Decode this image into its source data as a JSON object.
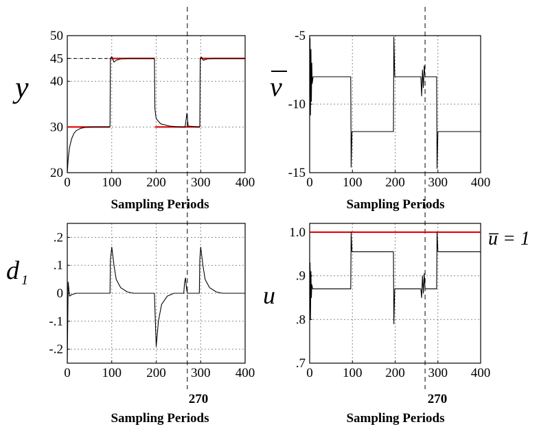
{
  "colors": {
    "signal": "#000000",
    "reference": "#dd0000",
    "grid": "#888888"
  },
  "chart_data": [
    {
      "id": "y",
      "type": "line",
      "ylabel": "y",
      "xlabel": "Sampling Periods",
      "xlim": [
        0,
        400
      ],
      "ylim": [
        20,
        50
      ],
      "xticks": [
        0,
        100,
        200,
        300,
        400
      ],
      "yticks": [
        20,
        30,
        40,
        45,
        50
      ],
      "grid": true,
      "vline_x": 270,
      "hline_dashed": 45,
      "series": [
        {
          "role": "reference",
          "color": "#dd0000",
          "segments": [
            [
              [
                0,
                30
              ],
              [
                96,
                30
              ]
            ],
            [
              [
                96,
                45
              ],
              [
                197,
                45
              ]
            ],
            [
              [
                197,
                30
              ],
              [
                298,
                30
              ]
            ],
            [
              [
                298,
                45
              ],
              [
                400,
                45
              ]
            ]
          ]
        },
        {
          "role": "signal",
          "color": "#000000",
          "points": [
            [
              0,
              20
            ],
            [
              2,
              23
            ],
            [
              5,
              25.5
            ],
            [
              10,
              27.5
            ],
            [
              15,
              28.6
            ],
            [
              20,
              29.2
            ],
            [
              30,
              29.7
            ],
            [
              40,
              29.9
            ],
            [
              60,
              30
            ],
            [
              96,
              30
            ],
            [
              97,
              45
            ],
            [
              100,
              45.4
            ],
            [
              105,
              44.2
            ],
            [
              110,
              44.6
            ],
            [
              120,
              44.9
            ],
            [
              140,
              45
            ],
            [
              196,
              45
            ],
            [
              197,
              34
            ],
            [
              200,
              31.8
            ],
            [
              210,
              30.7
            ],
            [
              230,
              30.2
            ],
            [
              255,
              30
            ],
            [
              265,
              30
            ],
            [
              269,
              33
            ],
            [
              272,
              30.2
            ],
            [
              298,
              30
            ],
            [
              299,
              45
            ],
            [
              302,
              45.3
            ],
            [
              306,
              44.6
            ],
            [
              315,
              44.9
            ],
            [
              330,
              45
            ],
            [
              400,
              45
            ]
          ]
        }
      ]
    },
    {
      "id": "v",
      "type": "line",
      "ylabel": "v",
      "xlabel": "Sampling Periods",
      "xlim": [
        0,
        400
      ],
      "ylim": [
        -15,
        -5
      ],
      "xticks": [
        0,
        100,
        200,
        300,
        400
      ],
      "yticks": [
        -15,
        -10,
        -5
      ],
      "grid": true,
      "vline_x": 270,
      "series": [
        {
          "role": "signal",
          "color": "#000000",
          "points": [
            [
              0,
              -8
            ],
            [
              1,
              -5.2
            ],
            [
              2,
              -10.8
            ],
            [
              3,
              -6
            ],
            [
              4,
              -9.8
            ],
            [
              5,
              -7
            ],
            [
              6,
              -8.5
            ],
            [
              8,
              -8
            ],
            [
              96,
              -8
            ],
            [
              97,
              -14.6
            ],
            [
              99,
              -12
            ],
            [
              196,
              -12
            ],
            [
              197,
              -5.1
            ],
            [
              199,
              -8
            ],
            [
              260,
              -8
            ],
            [
              262,
              -9.4
            ],
            [
              264,
              -7.5
            ],
            [
              266,
              -8.8
            ],
            [
              268,
              -7.2
            ],
            [
              270,
              -8
            ],
            [
              297,
              -8
            ],
            [
              298,
              -14.7
            ],
            [
              300,
              -12
            ],
            [
              400,
              -12
            ]
          ]
        }
      ]
    },
    {
      "id": "d1",
      "type": "line",
      "ylabel": "d",
      "ylabel_sub": "1",
      "xlabel": "Sampling Periods",
      "xlim": [
        0,
        400
      ],
      "ylim": [
        -0.25,
        0.25
      ],
      "xticks": [
        0,
        100,
        200,
        300,
        400
      ],
      "yticks": [
        -0.2,
        -0.1,
        0,
        0.1,
        0.2
      ],
      "grid": true,
      "vline_x": 270,
      "vline_label": "270",
      "series": [
        {
          "role": "signal",
          "color": "#000000",
          "points": [
            [
              0,
              -0.25
            ],
            [
              2,
              0.04
            ],
            [
              5,
              -0.01
            ],
            [
              10,
              -0.005
            ],
            [
              20,
              0
            ],
            [
              96,
              0
            ],
            [
              97,
              0.12
            ],
            [
              100,
              0.165
            ],
            [
              105,
              0.1
            ],
            [
              110,
              0.05
            ],
            [
              120,
              0.02
            ],
            [
              135,
              0.005
            ],
            [
              150,
              0
            ],
            [
              196,
              0
            ],
            [
              197,
              -0.05
            ],
            [
              200,
              -0.19
            ],
            [
              205,
              -0.1
            ],
            [
              212,
              -0.04
            ],
            [
              225,
              -0.01
            ],
            [
              240,
              0
            ],
            [
              262,
              0
            ],
            [
              264,
              0.04
            ],
            [
              266,
              0.055
            ],
            [
              268,
              0.02
            ],
            [
              270,
              0
            ],
            [
              297,
              0
            ],
            [
              298,
              0.12
            ],
            [
              300,
              0.165
            ],
            [
              305,
              0.1
            ],
            [
              310,
              0.05
            ],
            [
              320,
              0.02
            ],
            [
              335,
              0.005
            ],
            [
              350,
              0
            ],
            [
              400,
              0
            ]
          ]
        }
      ]
    },
    {
      "id": "u",
      "type": "line",
      "ylabel": "u",
      "xlabel": "Sampling Periods",
      "xlim": [
        0,
        400
      ],
      "ylim": [
        0.7,
        1.02
      ],
      "xticks": [
        0,
        100,
        200,
        300,
        400
      ],
      "yticks": [
        0.7,
        0.8,
        0.9,
        1
      ],
      "grid": true,
      "vline_x": 270,
      "vline_label": "270",
      "annotation": "u̅ = 1",
      "series": [
        {
          "role": "reference",
          "color": "#dd0000",
          "points": [
            [
              0,
              1
            ],
            [
              400,
              1
            ]
          ]
        },
        {
          "role": "signal",
          "color": "#000000",
          "points": [
            [
              0,
              0.87
            ],
            [
              1,
              0.93
            ],
            [
              2,
              0.8
            ],
            [
              3,
              0.91
            ],
            [
              4,
              0.85
            ],
            [
              5,
              0.88
            ],
            [
              7,
              0.87
            ],
            [
              96,
              0.87
            ],
            [
              97,
              1.0
            ],
            [
              99,
              0.955
            ],
            [
              196,
              0.955
            ],
            [
              197,
              0.79
            ],
            [
              199,
              0.87
            ],
            [
              260,
              0.87
            ],
            [
              262,
              0.85
            ],
            [
              264,
              0.9
            ],
            [
              266,
              0.86
            ],
            [
              268,
              0.905
            ],
            [
              270,
              0.87
            ],
            [
              297,
              0.87
            ],
            [
              298,
              1.0
            ],
            [
              300,
              0.955
            ],
            [
              400,
              0.955
            ]
          ]
        }
      ]
    }
  ]
}
